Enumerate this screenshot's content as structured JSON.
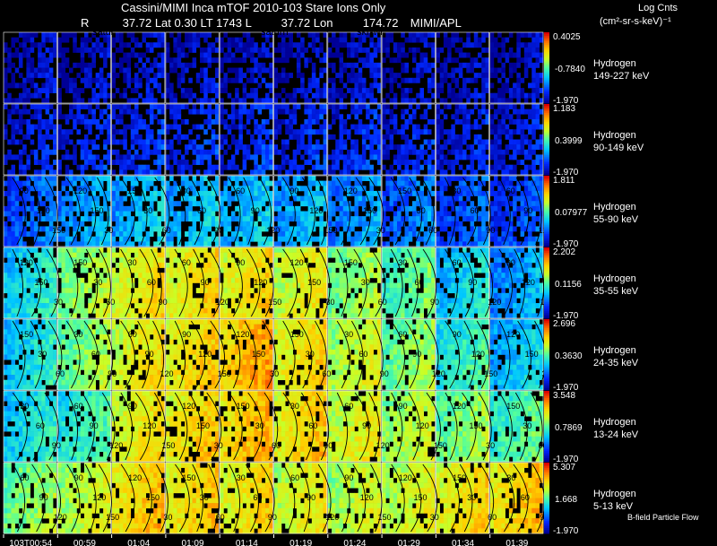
{
  "header": {
    "title": "Cassini/MIMI Inca mTOF  2010-103   Stare    Ions Only",
    "position_line": {
      "r_label": "R",
      "r_value": "37.72",
      "lat_label": "Lat",
      "lat_value": "0.30",
      "lt_label": "LT",
      "lt_value": "1743",
      "l_label": "L",
      "l_value": "37.72",
      "lon_label": "Lon",
      "lon_value": "174.72",
      "source": "MIMI/APL"
    },
    "panel_labels": [
      "satur",
      "saturn",
      "skr-wl"
    ]
  },
  "legend": {
    "title": "Log Cnts",
    "unit": "(cm²-sr-s-keV)⁻¹"
  },
  "footer": {
    "note": "B-field Particle Flow"
  },
  "chart_data": {
    "type": "heatmap",
    "columns": [
      "103T00:54",
      "00:59",
      "01:04",
      "01:09",
      "01:14",
      "01:19",
      "01:24",
      "01:29",
      "01:34",
      "01:39"
    ],
    "rows": [
      {
        "species": "Hydrogen",
        "energy": "149-227 keV",
        "max": "0.4025",
        "mid": "-0.7840",
        "min": "-1.970",
        "intensity": [
          0.05,
          0.05,
          0.06,
          0.06,
          0.06,
          0.05,
          0.06,
          0.05,
          0.05,
          0.05
        ]
      },
      {
        "species": "Hydrogen",
        "energy": "90-149 keV",
        "max": "1.183",
        "mid": "0.3999",
        "min": "-1.970",
        "intensity": [
          0.1,
          0.12,
          0.13,
          0.13,
          0.13,
          0.13,
          0.13,
          0.12,
          0.1,
          0.1
        ]
      },
      {
        "species": "Hydrogen",
        "energy": "55-90 keV",
        "max": "1.811",
        "mid": "0.07977",
        "min": "-1.970",
        "intensity": [
          0.22,
          0.3,
          0.33,
          0.34,
          0.34,
          0.32,
          0.28,
          0.24,
          0.2,
          0.18
        ]
      },
      {
        "species": "Hydrogen",
        "energy": "35-55 keV",
        "max": "2.202",
        "mid": "0.1156",
        "min": "-1.970",
        "intensity": [
          0.4,
          0.58,
          0.68,
          0.7,
          0.7,
          0.66,
          0.56,
          0.5,
          0.38,
          0.3
        ]
      },
      {
        "species": "Hydrogen",
        "energy": "24-35 keV",
        "max": "2.696",
        "mid": "0.3630",
        "min": "-1.970",
        "intensity": [
          0.4,
          0.55,
          0.68,
          0.72,
          0.78,
          0.7,
          0.62,
          0.55,
          0.45,
          0.35
        ]
      },
      {
        "species": "Hydrogen",
        "energy": "13-24 keV",
        "max": "3.548",
        "mid": "0.7869",
        "min": "-1.970",
        "intensity": [
          0.4,
          0.45,
          0.68,
          0.72,
          0.76,
          0.72,
          0.66,
          0.6,
          0.55,
          0.48
        ]
      },
      {
        "species": "Hydrogen",
        "energy": "5-13 keV",
        "max": "5.307",
        "mid": "1.668",
        "min": "-1.970",
        "intensity": [
          0.55,
          0.62,
          0.74,
          0.72,
          0.7,
          0.66,
          0.62,
          0.64,
          0.7,
          0.74
        ]
      }
    ],
    "contour_labels": [
      "30",
      "60",
      "90",
      "120",
      "150"
    ],
    "colorbar": "rainbow"
  }
}
